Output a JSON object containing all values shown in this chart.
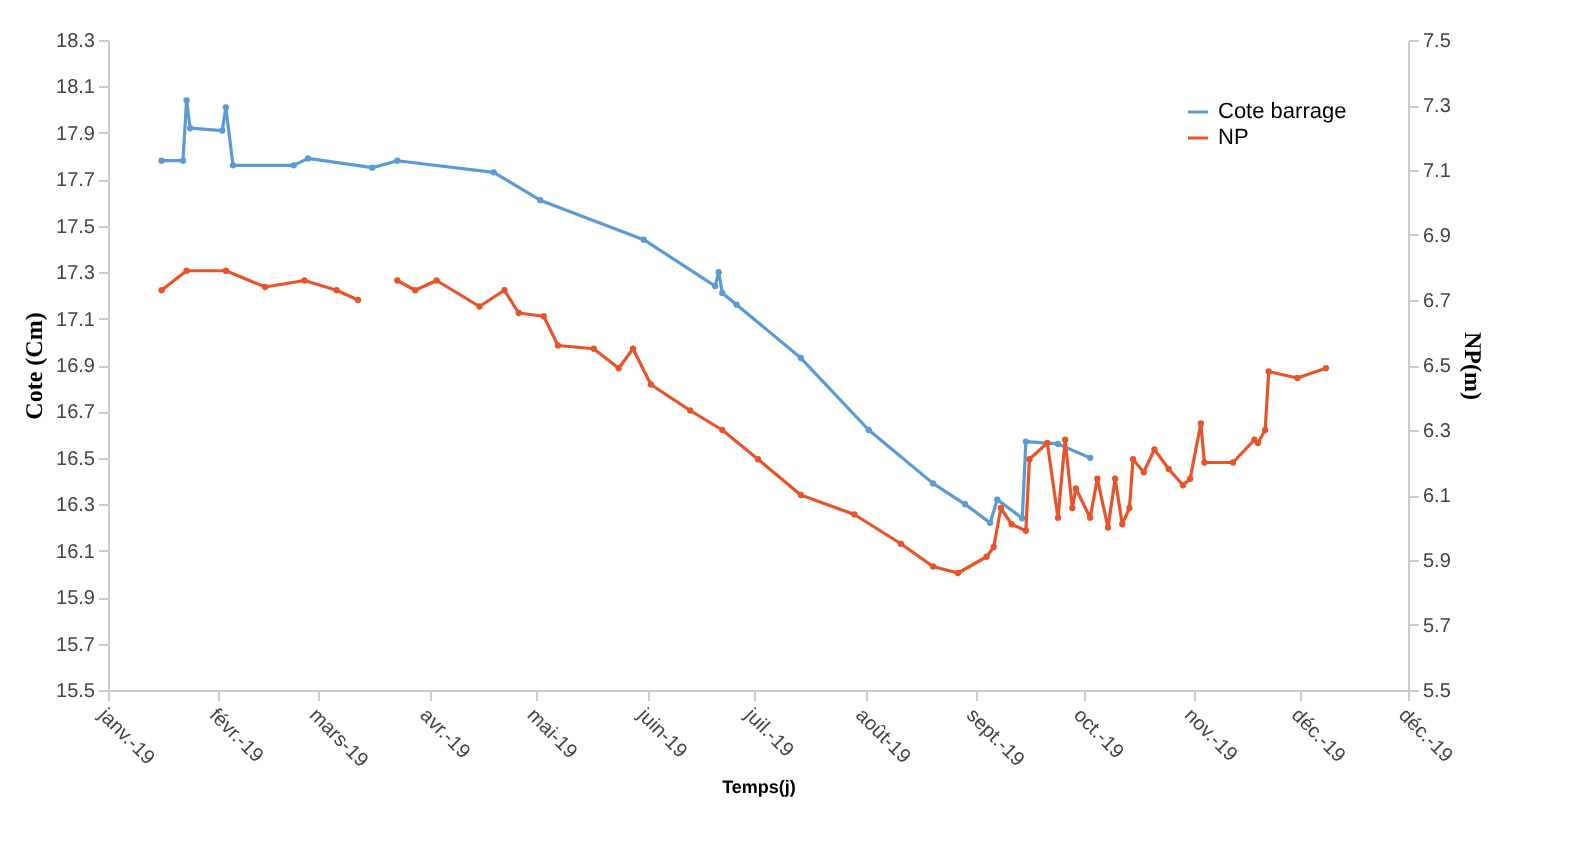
{
  "chart_data": {
    "type": "line",
    "xlabel": "Temps(j)",
    "ylabel": "Cote (Cm)",
    "y2label": "NP(m)",
    "xlim": [
      "2019-01-01",
      "2019-12-31"
    ],
    "xticks": [
      {
        "value": "2019-01-01",
        "label": "janv.-19"
      },
      {
        "value": "2019-02-01",
        "label": "févr.-19"
      },
      {
        "value": "2019-03-01",
        "label": "mars-19"
      },
      {
        "value": "2019-04-01",
        "label": "avr.-19"
      },
      {
        "value": "2019-05-01",
        "label": "mai-19"
      },
      {
        "value": "2019-06-01",
        "label": "juin-19"
      },
      {
        "value": "2019-07-01",
        "label": "juil.-19"
      },
      {
        "value": "2019-08-01",
        "label": "août-19"
      },
      {
        "value": "2019-09-01",
        "label": "sept.-19"
      },
      {
        "value": "2019-10-01",
        "label": "oct.-19"
      },
      {
        "value": "2019-11-01",
        "label": "nov.-19"
      },
      {
        "value": "2019-12-01",
        "label": "déc.-19"
      },
      {
        "value": "2019-12-31",
        "label": "déc.-19"
      }
    ],
    "ylim": [
      15.5,
      18.3
    ],
    "yticks": [
      15.5,
      15.7,
      15.9,
      16.1,
      16.3,
      16.5,
      16.7,
      16.9,
      17.1,
      17.3,
      17.5,
      17.7,
      17.9,
      18.1,
      18.3
    ],
    "y2lim": [
      5.5,
      7.5
    ],
    "y2ticks": [
      5.5,
      5.7,
      5.9,
      6.1,
      6.3,
      6.5,
      6.7,
      6.9,
      7.1,
      7.3,
      7.5
    ],
    "grid": false,
    "legend": "top right",
    "marker": "circle",
    "line_style": "solid",
    "series": [
      {
        "name": "Cote barrage",
        "color": "#5b9bd5",
        "x": [
          "2019-01-16",
          "2019-01-22",
          "2019-01-23",
          "2019-01-24",
          "2019-02-02",
          "2019-02-03",
          "2019-02-05",
          "2019-02-22",
          "2019-02-26",
          "2019-03-16",
          "2019-03-23",
          "2019-04-19",
          "2019-05-02",
          "2019-05-31",
          "2019-06-20",
          "2019-06-21",
          "2019-06-22",
          "2019-06-26",
          "2019-07-14",
          "2019-08-02",
          "2019-08-20",
          "2019-08-29",
          "2019-09-05",
          "2019-09-07",
          "2019-09-14",
          "2019-09-15",
          "2019-09-24",
          "2019-10-03"
        ],
        "values": [
          17.78,
          17.78,
          18.04,
          17.92,
          17.91,
          18.01,
          17.76,
          17.76,
          17.79,
          17.75,
          17.78,
          17.73,
          17.61,
          17.44,
          17.24,
          17.3,
          17.21,
          17.16,
          16.93,
          16.62,
          16.39,
          16.3,
          16.22,
          16.32,
          16.24,
          16.57,
          16.56,
          16.5
        ]
      },
      {
        "name": "NP",
        "color": "#e8542a",
        "axis": "y2",
        "x": [
          "2019-01-16",
          "2019-01-23",
          "2019-02-03",
          "2019-02-14",
          "2019-02-25",
          "2019-03-06",
          "2019-03-12",
          "2019-03-17",
          "2019-03-23",
          "2019-03-28",
          "2019-04-03",
          "2019-04-15",
          "2019-04-22",
          "2019-04-26",
          "2019-05-03",
          "2019-05-07",
          "2019-05-17",
          "2019-05-24",
          "2019-05-28",
          "2019-06-02",
          "2019-06-13",
          "2019-06-22",
          "2019-07-02",
          "2019-07-14",
          "2019-07-29",
          "2019-08-11",
          "2019-08-20",
          "2019-08-27",
          "2019-09-04",
          "2019-09-06",
          "2019-09-08",
          "2019-09-11",
          "2019-09-15",
          "2019-09-16",
          "2019-09-21",
          "2019-09-24",
          "2019-09-26",
          "2019-09-28",
          "2019-09-29",
          "2019-10-03",
          "2019-10-05",
          "2019-10-08",
          "2019-10-10",
          "2019-10-12",
          "2019-10-14",
          "2019-10-15",
          "2019-10-18",
          "2019-10-21",
          "2019-10-25",
          "2019-10-29",
          "2019-10-31",
          "2019-11-03",
          "2019-11-04",
          "2019-11-12",
          "2019-11-18",
          "2019-11-19",
          "2019-11-21",
          "2019-11-22",
          "2019-11-30",
          "2019-12-08"
        ],
        "values": [
          6.73,
          6.79,
          6.79,
          6.74,
          6.76,
          6.73,
          6.7,
          null,
          6.76,
          6.73,
          6.76,
          6.68,
          6.73,
          6.66,
          6.65,
          6.56,
          6.55,
          6.49,
          6.55,
          6.44,
          6.36,
          6.3,
          6.21,
          6.1,
          6.04,
          5.95,
          5.88,
          5.86,
          5.91,
          5.94,
          6.06,
          6.01,
          5.99,
          6.21,
          6.26,
          6.03,
          6.27,
          6.06,
          6.12,
          6.03,
          6.15,
          6.0,
          6.15,
          6.01,
          6.06,
          6.21,
          6.17,
          6.24,
          6.18,
          6.13,
          6.15,
          6.32,
          6.2,
          6.2,
          6.27,
          6.26,
          6.3,
          6.48,
          6.46,
          6.49
        ]
      }
    ]
  }
}
